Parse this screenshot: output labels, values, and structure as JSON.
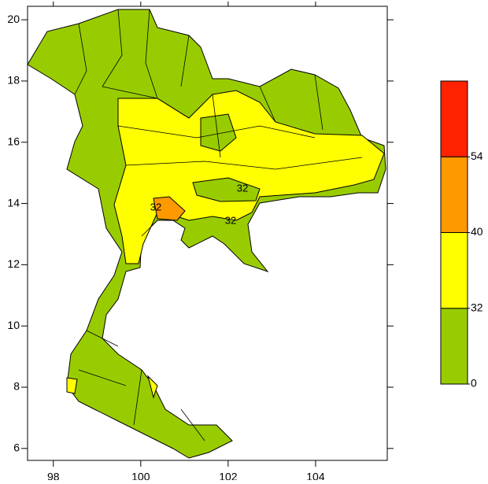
{
  "chart_data": {
    "type": "map",
    "xlim": [
      97.41,
      105.64
    ],
    "ylim": [
      5.61,
      20.44
    ],
    "xticks": [
      98,
      100,
      102,
      104
    ],
    "yticks": [
      6,
      8,
      10,
      12,
      14,
      16,
      18,
      20
    ],
    "colorbar": {
      "levels": [
        0,
        32,
        40,
        54
      ],
      "colors": [
        "#99cc00",
        "#ffff00",
        "#ff9900",
        "#ff2200"
      ]
    },
    "contour_labels": [
      32,
      32,
      32
    ]
  }
}
